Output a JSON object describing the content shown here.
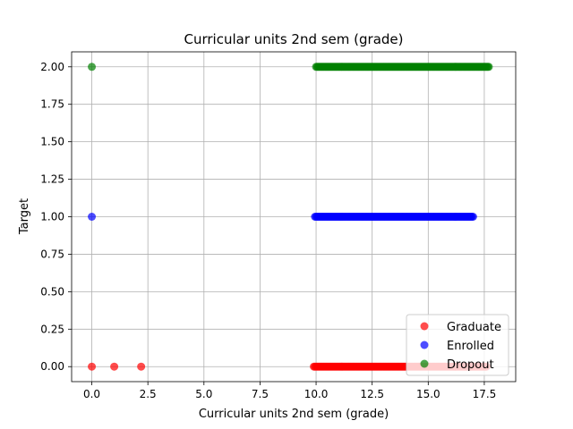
{
  "chart_data": {
    "type": "scatter",
    "title": "Curricular units 2nd sem (grade)",
    "xlabel": "Curricular units 2nd sem (grade)",
    "ylabel": "Target",
    "xlim": [
      -0.9,
      18.9
    ],
    "ylim": [
      -0.1,
      2.1
    ],
    "xticks": [
      "0.0",
      "2.5",
      "5.0",
      "7.5",
      "10.0",
      "12.5",
      "15.0",
      "17.5"
    ],
    "yticks": [
      "0.00",
      "0.25",
      "0.50",
      "0.75",
      "1.00",
      "1.25",
      "1.50",
      "1.75",
      "2.00"
    ],
    "grid": true,
    "legend_position": "lower right",
    "series": [
      {
        "name": "Graduate",
        "color": "#ff0000",
        "y": 0,
        "x": [
          0,
          1.0,
          2.2,
          9.9,
          10.0,
          10.2,
          10.5,
          10.8,
          11.0,
          11.3,
          11.6,
          12.0,
          12.3,
          12.6,
          13.0,
          13.3,
          13.6,
          14.0,
          14.3,
          14.6,
          15.0,
          15.3,
          15.6,
          16.0,
          16.3,
          16.6,
          17.0,
          17.3,
          17.6
        ]
      },
      {
        "name": "Enrolled",
        "color": "#0000ff",
        "y": 1,
        "x": [
          0,
          9.95,
          10.0,
          10.2,
          10.5,
          10.8,
          11.0,
          11.3,
          11.6,
          12.0,
          12.3,
          12.6,
          13.0,
          13.3,
          13.6,
          14.0,
          14.3,
          14.6,
          15.0,
          15.3,
          15.6,
          16.0,
          16.3,
          16.6,
          17.0
        ]
      },
      {
        "name": "Dropout",
        "color": "#008000",
        "y": 2,
        "x": [
          0,
          10.0,
          10.2,
          10.5,
          10.8,
          11.0,
          11.3,
          11.6,
          12.0,
          12.3,
          12.6,
          13.0,
          13.3,
          13.6,
          14.0,
          14.3,
          14.6,
          15.0,
          15.3,
          15.6,
          16.0,
          16.3,
          16.6,
          17.0,
          17.3,
          17.6,
          17.7
        ]
      }
    ]
  }
}
